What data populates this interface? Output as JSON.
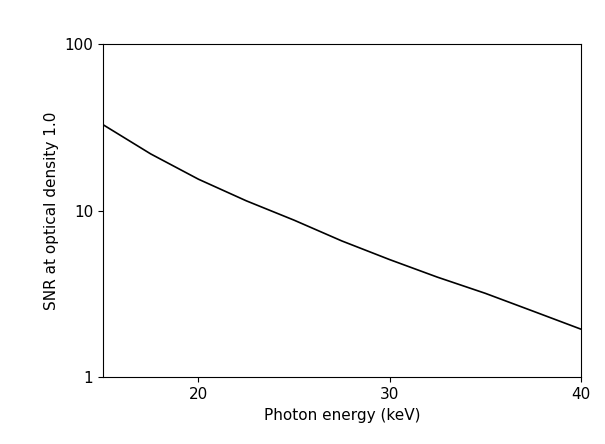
{
  "chart_data": {
    "type": "line",
    "x_label": "Photon energy (keV)",
    "y_label": "SNR at optical density 1.0",
    "x": [
      15,
      17.5,
      20,
      22.5,
      25,
      27.5,
      30,
      32.5,
      35,
      37.5,
      40
    ],
    "values": [
      33,
      22,
      15.5,
      11.5,
      8.8,
      6.6,
      5.1,
      4.0,
      3.2,
      2.5,
      1.95
    ],
    "color": "#000000",
    "xlim": [
      15,
      40
    ],
    "xticks": [
      20,
      30,
      40
    ],
    "ylim": [
      1,
      100
    ],
    "yticks": [
      1,
      10,
      100
    ],
    "log": "y",
    "grid": false
  }
}
